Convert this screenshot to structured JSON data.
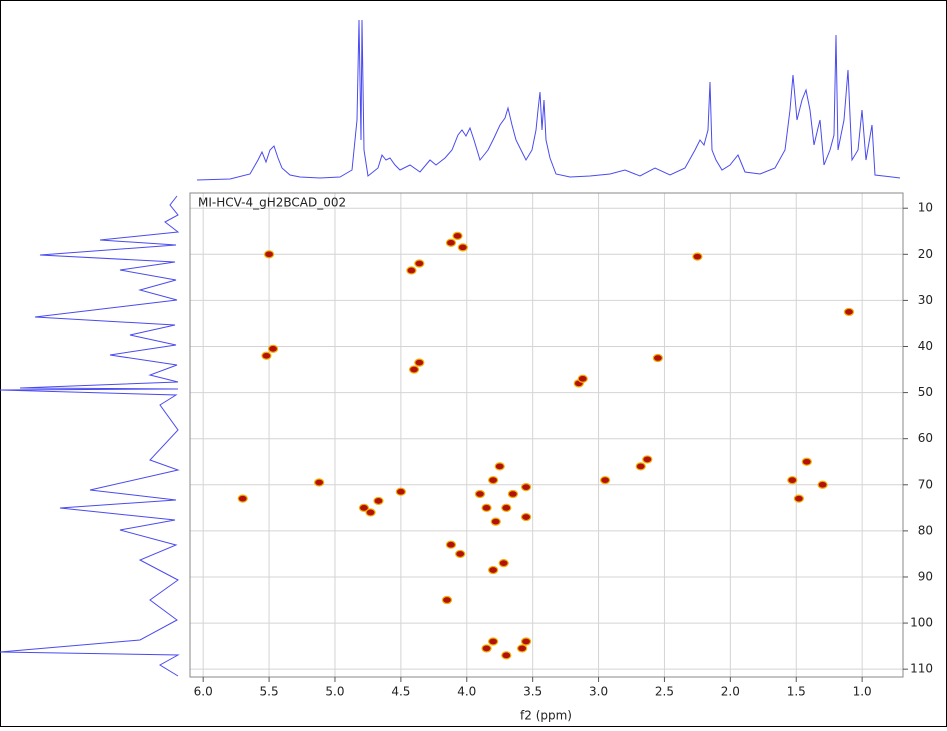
{
  "chart_data": {
    "type": "scatter",
    "title": "MI-HCV-4_gH2BCAD_002",
    "x_label": "f2 (ppm)",
    "xlim": [
      6.1,
      0.69
    ],
    "ylim": [
      6.7,
      111.7
    ],
    "xticks": [
      {
        "value": 6,
        "label": "6.0"
      },
      5.5,
      {
        "value": 5,
        "label": "5.0"
      },
      4.5,
      {
        "value": 4,
        "label": "4.0"
      },
      3.5,
      {
        "value": 3,
        "label": "3.0"
      },
      2.5,
      {
        "value": 2,
        "label": "2.0"
      },
      1.5,
      {
        "value": 1,
        "label": "1.0"
      }
    ],
    "yticks": [
      10,
      20,
      30,
      40,
      50,
      60,
      70,
      80,
      90,
      100,
      110
    ],
    "grid": true,
    "color": "#b3120c",
    "x": [
      5.5,
      5.47,
      5.52,
      4.07,
      4.12,
      4.03,
      4.42,
      4.36,
      4.4,
      4.36,
      2.25,
      1.1,
      2.55,
      3.15,
      3.12,
      5.12,
      4.78,
      4.73,
      4.67,
      4.5,
      5.7,
      3.75,
      3.8,
      3.55,
      3.65,
      3.55,
      3.7,
      3.85,
      3.9,
      3.78,
      2.68,
      2.63,
      2.95,
      1.53,
      1.42,
      1.3,
      1.48,
      4.05,
      4.12,
      3.8,
      3.72,
      4.15,
      3.8,
      3.85,
      3.58,
      3.55,
      3.7
    ],
    "values": [
      20,
      40.5,
      42,
      16,
      17.5,
      18.5,
      23.5,
      22,
      45,
      43.5,
      20.5,
      32.5,
      42.5,
      48,
      47,
      69.5,
      75,
      76,
      73.5,
      71.5,
      73,
      66,
      69,
      70.5,
      72,
      77,
      75,
      75,
      72,
      78,
      66,
      64.5,
      69,
      69,
      65,
      70,
      73,
      85,
      83,
      88.5,
      87,
      95,
      104,
      105.5,
      105.5,
      104,
      107
    ]
  }
}
